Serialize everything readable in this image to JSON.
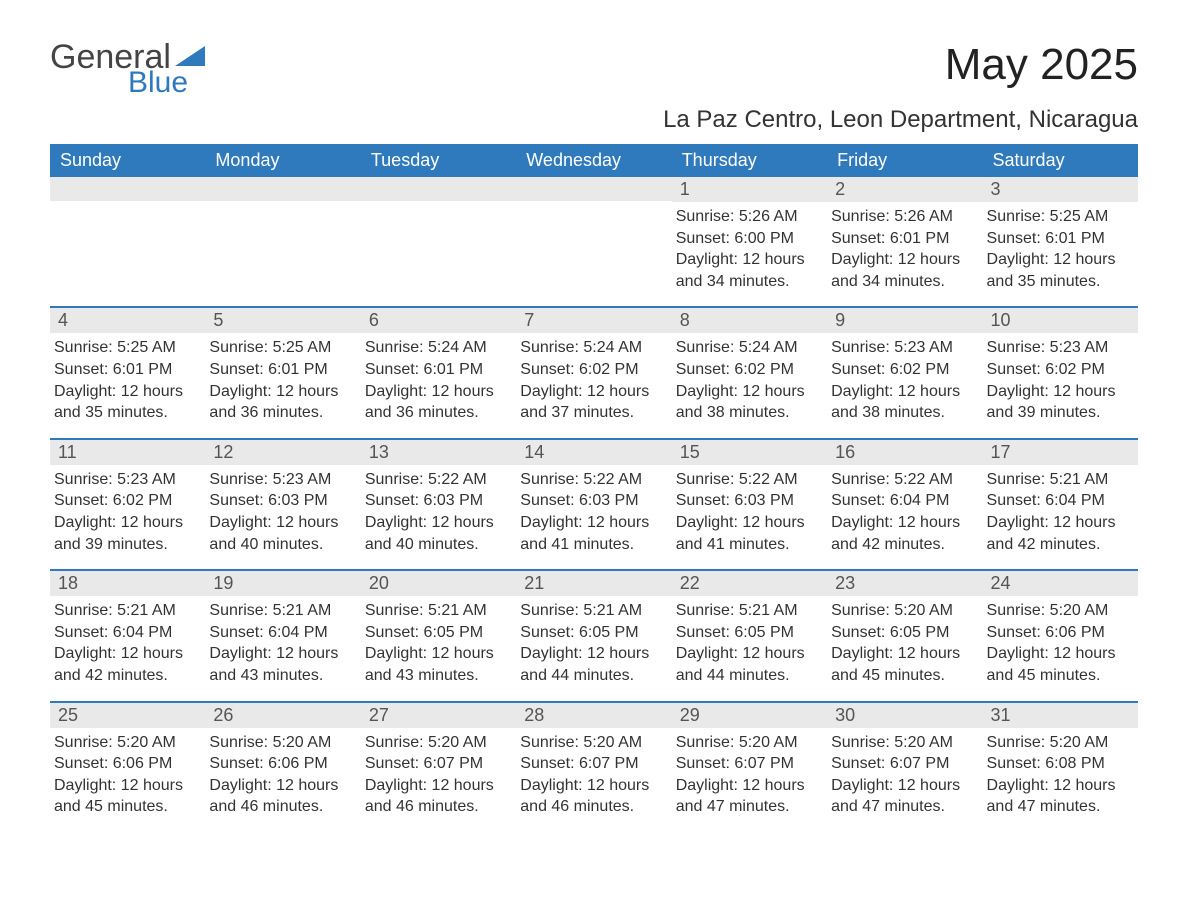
{
  "logo": {
    "text1": "General",
    "text2": "Blue"
  },
  "colors": {
    "brand": "#2f79bd",
    "header_text": "#ffffff",
    "daynum_bg": "#e9e9e9",
    "body_text": "#333333",
    "page_bg": "#ffffff"
  },
  "title": "May 2025",
  "location": "La Paz Centro, Leon Department, Nicaragua",
  "weekdays": [
    "Sunday",
    "Monday",
    "Tuesday",
    "Wednesday",
    "Thursday",
    "Friday",
    "Saturday"
  ],
  "weeks": [
    [
      {
        "n": "",
        "sr": "",
        "ss": "",
        "dl": ""
      },
      {
        "n": "",
        "sr": "",
        "ss": "",
        "dl": ""
      },
      {
        "n": "",
        "sr": "",
        "ss": "",
        "dl": ""
      },
      {
        "n": "",
        "sr": "",
        "ss": "",
        "dl": ""
      },
      {
        "n": "1",
        "sr": "Sunrise: 5:26 AM",
        "ss": "Sunset: 6:00 PM",
        "dl": "Daylight: 12 hours and 34 minutes."
      },
      {
        "n": "2",
        "sr": "Sunrise: 5:26 AM",
        "ss": "Sunset: 6:01 PM",
        "dl": "Daylight: 12 hours and 34 minutes."
      },
      {
        "n": "3",
        "sr": "Sunrise: 5:25 AM",
        "ss": "Sunset: 6:01 PM",
        "dl": "Daylight: 12 hours and 35 minutes."
      }
    ],
    [
      {
        "n": "4",
        "sr": "Sunrise: 5:25 AM",
        "ss": "Sunset: 6:01 PM",
        "dl": "Daylight: 12 hours and 35 minutes."
      },
      {
        "n": "5",
        "sr": "Sunrise: 5:25 AM",
        "ss": "Sunset: 6:01 PM",
        "dl": "Daylight: 12 hours and 36 minutes."
      },
      {
        "n": "6",
        "sr": "Sunrise: 5:24 AM",
        "ss": "Sunset: 6:01 PM",
        "dl": "Daylight: 12 hours and 36 minutes."
      },
      {
        "n": "7",
        "sr": "Sunrise: 5:24 AM",
        "ss": "Sunset: 6:02 PM",
        "dl": "Daylight: 12 hours and 37 minutes."
      },
      {
        "n": "8",
        "sr": "Sunrise: 5:24 AM",
        "ss": "Sunset: 6:02 PM",
        "dl": "Daylight: 12 hours and 38 minutes."
      },
      {
        "n": "9",
        "sr": "Sunrise: 5:23 AM",
        "ss": "Sunset: 6:02 PM",
        "dl": "Daylight: 12 hours and 38 minutes."
      },
      {
        "n": "10",
        "sr": "Sunrise: 5:23 AM",
        "ss": "Sunset: 6:02 PM",
        "dl": "Daylight: 12 hours and 39 minutes."
      }
    ],
    [
      {
        "n": "11",
        "sr": "Sunrise: 5:23 AM",
        "ss": "Sunset: 6:02 PM",
        "dl": "Daylight: 12 hours and 39 minutes."
      },
      {
        "n": "12",
        "sr": "Sunrise: 5:23 AM",
        "ss": "Sunset: 6:03 PM",
        "dl": "Daylight: 12 hours and 40 minutes."
      },
      {
        "n": "13",
        "sr": "Sunrise: 5:22 AM",
        "ss": "Sunset: 6:03 PM",
        "dl": "Daylight: 12 hours and 40 minutes."
      },
      {
        "n": "14",
        "sr": "Sunrise: 5:22 AM",
        "ss": "Sunset: 6:03 PM",
        "dl": "Daylight: 12 hours and 41 minutes."
      },
      {
        "n": "15",
        "sr": "Sunrise: 5:22 AM",
        "ss": "Sunset: 6:03 PM",
        "dl": "Daylight: 12 hours and 41 minutes."
      },
      {
        "n": "16",
        "sr": "Sunrise: 5:22 AM",
        "ss": "Sunset: 6:04 PM",
        "dl": "Daylight: 12 hours and 42 minutes."
      },
      {
        "n": "17",
        "sr": "Sunrise: 5:21 AM",
        "ss": "Sunset: 6:04 PM",
        "dl": "Daylight: 12 hours and 42 minutes."
      }
    ],
    [
      {
        "n": "18",
        "sr": "Sunrise: 5:21 AM",
        "ss": "Sunset: 6:04 PM",
        "dl": "Daylight: 12 hours and 42 minutes."
      },
      {
        "n": "19",
        "sr": "Sunrise: 5:21 AM",
        "ss": "Sunset: 6:04 PM",
        "dl": "Daylight: 12 hours and 43 minutes."
      },
      {
        "n": "20",
        "sr": "Sunrise: 5:21 AM",
        "ss": "Sunset: 6:05 PM",
        "dl": "Daylight: 12 hours and 43 minutes."
      },
      {
        "n": "21",
        "sr": "Sunrise: 5:21 AM",
        "ss": "Sunset: 6:05 PM",
        "dl": "Daylight: 12 hours and 44 minutes."
      },
      {
        "n": "22",
        "sr": "Sunrise: 5:21 AM",
        "ss": "Sunset: 6:05 PM",
        "dl": "Daylight: 12 hours and 44 minutes."
      },
      {
        "n": "23",
        "sr": "Sunrise: 5:20 AM",
        "ss": "Sunset: 6:05 PM",
        "dl": "Daylight: 12 hours and 45 minutes."
      },
      {
        "n": "24",
        "sr": "Sunrise: 5:20 AM",
        "ss": "Sunset: 6:06 PM",
        "dl": "Daylight: 12 hours and 45 minutes."
      }
    ],
    [
      {
        "n": "25",
        "sr": "Sunrise: 5:20 AM",
        "ss": "Sunset: 6:06 PM",
        "dl": "Daylight: 12 hours and 45 minutes."
      },
      {
        "n": "26",
        "sr": "Sunrise: 5:20 AM",
        "ss": "Sunset: 6:06 PM",
        "dl": "Daylight: 12 hours and 46 minutes."
      },
      {
        "n": "27",
        "sr": "Sunrise: 5:20 AM",
        "ss": "Sunset: 6:07 PM",
        "dl": "Daylight: 12 hours and 46 minutes."
      },
      {
        "n": "28",
        "sr": "Sunrise: 5:20 AM",
        "ss": "Sunset: 6:07 PM",
        "dl": "Daylight: 12 hours and 46 minutes."
      },
      {
        "n": "29",
        "sr": "Sunrise: 5:20 AM",
        "ss": "Sunset: 6:07 PM",
        "dl": "Daylight: 12 hours and 47 minutes."
      },
      {
        "n": "30",
        "sr": "Sunrise: 5:20 AM",
        "ss": "Sunset: 6:07 PM",
        "dl": "Daylight: 12 hours and 47 minutes."
      },
      {
        "n": "31",
        "sr": "Sunrise: 5:20 AM",
        "ss": "Sunset: 6:08 PM",
        "dl": "Daylight: 12 hours and 47 minutes."
      }
    ]
  ]
}
